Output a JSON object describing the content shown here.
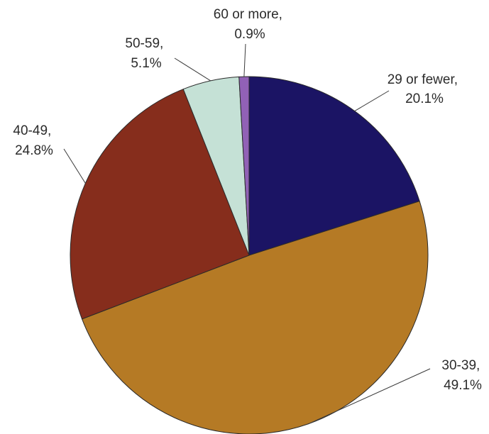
{
  "chart_data": {
    "type": "pie",
    "title": "",
    "start": "12 o'clock, clockwise",
    "slices": [
      {
        "id": "29-or-fewer",
        "category": "29 or fewer,",
        "value": 20.1,
        "value_label": "20.1%",
        "color": "#1b1464"
      },
      {
        "id": "30-39",
        "category": "30-39,",
        "value": 49.1,
        "value_label": "49.1%",
        "color": "#b57a25"
      },
      {
        "id": "40-49",
        "category": "40-49,",
        "value": 24.8,
        "value_label": "24.8%",
        "color": "#862d1c"
      },
      {
        "id": "50-59",
        "category": "50-59,",
        "value": 5.1,
        "value_label": "5.1%",
        "color": "#c5e1d6"
      },
      {
        "id": "60-or-more",
        "category": "60 or more,",
        "value": 0.9,
        "value_label": "0.9%",
        "color": "#9161b6"
      }
    ]
  }
}
